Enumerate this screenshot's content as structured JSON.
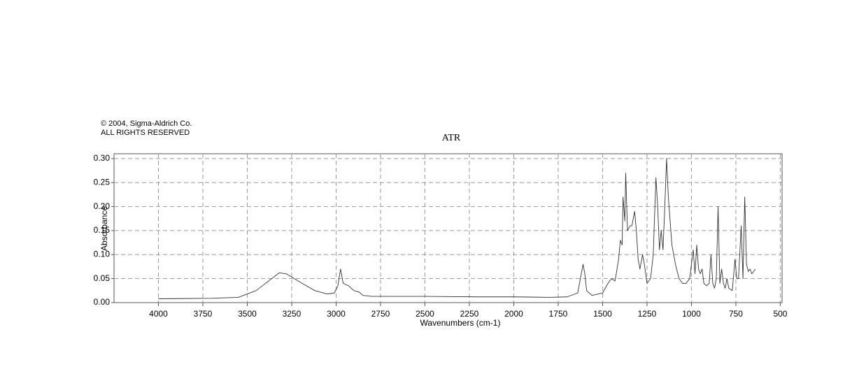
{
  "chart_data": {
    "type": "line",
    "notes": [
      "© 2004, Sigma-Aldrich Co.",
      "ALL RIGHTS RESERVED"
    ],
    "title": "ATR",
    "x_label": "Wavenumbers (cm-1)",
    "y_label": "Absorbance",
    "xlim": [
      4250,
      490
    ],
    "ylim": [
      0,
      0.31
    ],
    "xticks": [
      4000,
      3750,
      3500,
      3250,
      3000,
      2750,
      2500,
      2250,
      2000,
      1750,
      1500,
      1250,
      1000,
      750,
      500
    ],
    "yticks": [
      {
        "value": 0,
        "label": "0.00"
      },
      {
        "value": 0.05,
        "label": "0.05"
      },
      {
        "value": 0.1,
        "label": "0.10"
      },
      {
        "value": 0.15,
        "label": "0.15"
      },
      {
        "value": 0.2,
        "label": "0.20"
      },
      {
        "value": 0.25,
        "label": "0.25"
      },
      {
        "value": 0.3,
        "label": "0.30"
      }
    ],
    "grid": true,
    "series": [
      {
        "color": "#333333",
        "x": [
          4000,
          3700,
          3550,
          3450,
          3380,
          3320,
          3280,
          3200,
          3120,
          3050,
          3010,
          2990,
          2975,
          2960,
          2930,
          2900,
          2870,
          2850,
          2800,
          2500,
          2200,
          2000,
          1800,
          1700,
          1640,
          1620,
          1610,
          1600,
          1590,
          1560,
          1500,
          1470,
          1450,
          1430,
          1410,
          1400,
          1390,
          1385,
          1375,
          1370,
          1360,
          1345,
          1335,
          1320,
          1310,
          1300,
          1290,
          1275,
          1265,
          1250,
          1230,
          1215,
          1200,
          1190,
          1180,
          1170,
          1160,
          1150,
          1140,
          1130,
          1110,
          1090,
          1070,
          1050,
          1030,
          1010,
          1000,
          990,
          980,
          970,
          960,
          950,
          940,
          930,
          915,
          900,
          890,
          880,
          870,
          860,
          850,
          840,
          830,
          820,
          810,
          800,
          790,
          770,
          755,
          745,
          735,
          720,
          710,
          700,
          690,
          680,
          670,
          660,
          650,
          640
        ],
        "values": [
          0.008,
          0.009,
          0.011,
          0.025,
          0.045,
          0.062,
          0.06,
          0.042,
          0.025,
          0.018,
          0.02,
          0.035,
          0.07,
          0.04,
          0.035,
          0.025,
          0.022,
          0.015,
          0.013,
          0.013,
          0.012,
          0.012,
          0.011,
          0.012,
          0.02,
          0.06,
          0.08,
          0.06,
          0.025,
          0.015,
          0.02,
          0.04,
          0.05,
          0.045,
          0.09,
          0.13,
          0.12,
          0.22,
          0.17,
          0.27,
          0.15,
          0.16,
          0.16,
          0.19,
          0.15,
          0.09,
          0.07,
          0.1,
          0.08,
          0.04,
          0.05,
          0.1,
          0.26,
          0.2,
          0.11,
          0.15,
          0.11,
          0.2,
          0.3,
          0.22,
          0.12,
          0.08,
          0.05,
          0.04,
          0.04,
          0.05,
          0.08,
          0.11,
          0.06,
          0.12,
          0.07,
          0.06,
          0.07,
          0.04,
          0.035,
          0.04,
          0.1,
          0.04,
          0.03,
          0.05,
          0.2,
          0.04,
          0.07,
          0.04,
          0.03,
          0.05,
          0.03,
          0.025,
          0.09,
          0.05,
          0.05,
          0.16,
          0.05,
          0.22,
          0.08,
          0.065,
          0.07,
          0.06,
          0.065,
          0.07
        ]
      }
    ]
  }
}
